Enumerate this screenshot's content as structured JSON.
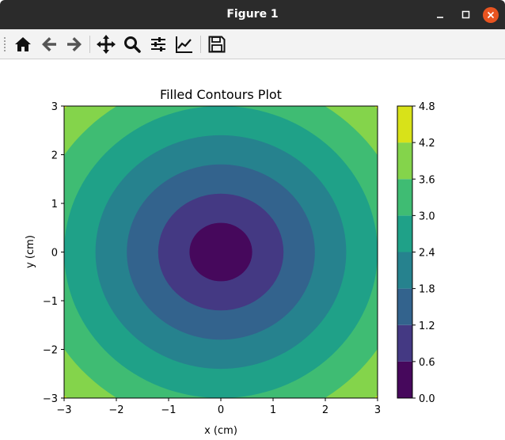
{
  "window": {
    "title": "Figure 1"
  },
  "toolbar": {
    "buttons": [
      {
        "name": "home",
        "icon": "home-icon"
      },
      {
        "name": "back",
        "icon": "arrow-left-icon"
      },
      {
        "name": "forward",
        "icon": "arrow-right-icon"
      },
      {
        "name": "pan",
        "icon": "move-icon"
      },
      {
        "name": "zoom",
        "icon": "magnifier-icon"
      },
      {
        "name": "configure-subplots",
        "icon": "sliders-icon"
      },
      {
        "name": "edit-axis",
        "icon": "line-chart-icon"
      },
      {
        "name": "save",
        "icon": "floppy-disk-icon"
      }
    ]
  },
  "chart_data": {
    "type": "contourf",
    "title": "Filled Contours Plot",
    "xlabel": "x (cm)",
    "ylabel": "y (cm)",
    "xlim": [
      -3,
      3
    ],
    "ylim": [
      -3,
      3
    ],
    "xticks": [
      -3,
      -2,
      -1,
      0,
      1,
      2,
      3
    ],
    "yticks": [
      -3,
      -2,
      -1,
      0,
      1,
      2,
      3
    ],
    "xtick_labels": [
      "−3",
      "−2",
      "−1",
      "0",
      "1",
      "2",
      "3"
    ],
    "ytick_labels": [
      "−3",
      "−2",
      "−1",
      "0",
      "1",
      "2",
      "3"
    ],
    "function": "z = sqrt(x^2 + y^2)",
    "levels": [
      0.0,
      0.6,
      1.2,
      1.8,
      2.4,
      3.0,
      3.6,
      4.2,
      4.8
    ],
    "colorbar": {
      "tick_labels": [
        "0.0",
        "0.6",
        "1.2",
        "1.8",
        "2.4",
        "3.0",
        "3.6",
        "4.2",
        "4.8"
      ],
      "colors": [
        "#46085c",
        "#443983",
        "#33638d",
        "#26828e",
        "#1fa188",
        "#3fbc73",
        "#84d44b",
        "#d8e219"
      ]
    },
    "grid": false
  }
}
